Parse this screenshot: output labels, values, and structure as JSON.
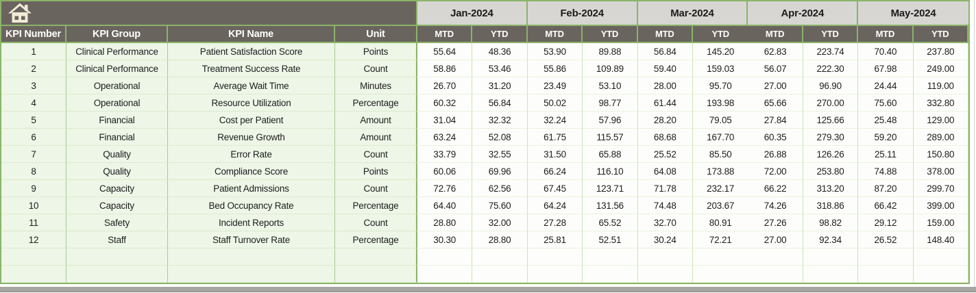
{
  "table": {
    "home_icon": "home-icon",
    "left_columns": [
      "KPI Number",
      "KPI Group",
      "KPI Name",
      "Unit"
    ],
    "months": [
      "Jan-2024",
      "Feb-2024",
      "Mar-2024",
      "Apr-2024",
      "May-2024"
    ],
    "period_columns": [
      "MTD",
      "YTD"
    ],
    "rows": [
      {
        "kpi_number": "1",
        "kpi_group": "Clinical Performance",
        "kpi_name": "Patient Satisfaction Score",
        "unit": "Points",
        "values": [
          "55.64",
          "48.36",
          "53.90",
          "89.88",
          "56.84",
          "145.20",
          "62.83",
          "223.74",
          "70.40",
          "237.80"
        ]
      },
      {
        "kpi_number": "2",
        "kpi_group": "Clinical Performance",
        "kpi_name": "Treatment Success Rate",
        "unit": "Count",
        "values": [
          "58.86",
          "53.46",
          "55.86",
          "109.89",
          "59.40",
          "159.03",
          "56.07",
          "222.30",
          "67.98",
          "249.00"
        ]
      },
      {
        "kpi_number": "3",
        "kpi_group": "Operational",
        "kpi_name": "Average Wait Time",
        "unit": "Minutes",
        "values": [
          "26.70",
          "31.20",
          "23.49",
          "53.10",
          "28.00",
          "95.70",
          "27.00",
          "96.90",
          "24.44",
          "119.00"
        ]
      },
      {
        "kpi_number": "4",
        "kpi_group": "Operational",
        "kpi_name": "Resource Utilization",
        "unit": "Percentage",
        "values": [
          "60.32",
          "56.84",
          "50.02",
          "98.77",
          "61.44",
          "193.98",
          "65.66",
          "270.00",
          "75.60",
          "332.80"
        ]
      },
      {
        "kpi_number": "5",
        "kpi_group": "Financial",
        "kpi_name": "Cost per Patient",
        "unit": "Amount",
        "values": [
          "31.04",
          "32.32",
          "32.24",
          "57.96",
          "28.20",
          "79.05",
          "27.84",
          "125.66",
          "25.48",
          "129.00"
        ]
      },
      {
        "kpi_number": "6",
        "kpi_group": "Financial",
        "kpi_name": "Revenue Growth",
        "unit": "Amount",
        "values": [
          "63.24",
          "52.08",
          "61.75",
          "115.57",
          "68.68",
          "167.70",
          "60.35",
          "279.30",
          "59.20",
          "289.00"
        ]
      },
      {
        "kpi_number": "7",
        "kpi_group": "Quality",
        "kpi_name": "Error Rate",
        "unit": "Count",
        "values": [
          "33.79",
          "32.55",
          "31.50",
          "65.88",
          "25.52",
          "85.50",
          "26.88",
          "126.26",
          "25.11",
          "150.80"
        ]
      },
      {
        "kpi_number": "8",
        "kpi_group": "Quality",
        "kpi_name": "Compliance Score",
        "unit": "Points",
        "values": [
          "60.06",
          "69.96",
          "66.24",
          "116.10",
          "64.08",
          "173.88",
          "72.00",
          "253.80",
          "74.88",
          "378.00"
        ]
      },
      {
        "kpi_number": "9",
        "kpi_group": "Capacity",
        "kpi_name": "Patient Admissions",
        "unit": "Count",
        "values": [
          "72.76",
          "62.56",
          "67.45",
          "123.71",
          "71.78",
          "232.17",
          "66.22",
          "313.20",
          "87.20",
          "299.70"
        ]
      },
      {
        "kpi_number": "10",
        "kpi_group": "Capacity",
        "kpi_name": "Bed Occupancy Rate",
        "unit": "Percentage",
        "values": [
          "64.40",
          "75.60",
          "64.24",
          "131.56",
          "74.48",
          "203.67",
          "74.26",
          "318.86",
          "66.42",
          "399.00"
        ]
      },
      {
        "kpi_number": "11",
        "kpi_group": "Safety",
        "kpi_name": "Incident Reports",
        "unit": "Count",
        "values": [
          "28.80",
          "32.00",
          "27.28",
          "65.52",
          "32.70",
          "80.91",
          "27.26",
          "98.82",
          "29.12",
          "159.00"
        ]
      },
      {
        "kpi_number": "12",
        "kpi_group": "Staff",
        "kpi_name": "Staff Turnover Rate",
        "unit": "Percentage",
        "values": [
          "30.30",
          "28.80",
          "25.81",
          "52.51",
          "30.24",
          "72.21",
          "27.00",
          "92.34",
          "26.52",
          "148.40"
        ]
      }
    ],
    "empty_rows": 2
  },
  "colors": {
    "header_dark": "#6a645f",
    "month_bg": "#d7d6d2",
    "row_tint": "#edf6e7",
    "grid_green": "#8ab468",
    "status_gray": "#a7a5a2"
  }
}
